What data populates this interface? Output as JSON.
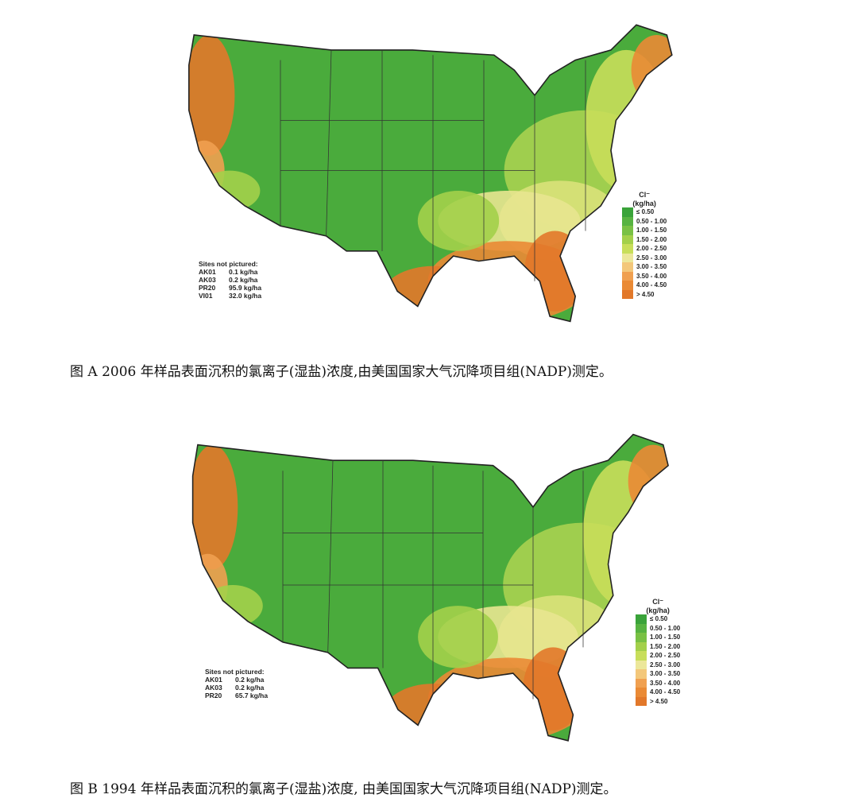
{
  "figures": [
    {
      "legend_title": "Cl⁻",
      "legend_unit": "(kg/ha)",
      "legend": [
        "≤ 0.50",
        "0.50 - 1.00",
        "1.00 - 1.50",
        "1.50 - 2.00",
        "2.00 - 2.50",
        "2.50 - 3.00",
        "3.00 - 3.50",
        "3.50 - 4.00",
        "4.00 - 4.50",
        "> 4.50"
      ],
      "sites_title": "Sites not pictured:",
      "sites": [
        [
          "AK01",
          "0.1 kg/ha"
        ],
        [
          "AK03",
          "0.2 kg/ha"
        ],
        [
          "PR20",
          "95.9 kg/ha"
        ],
        [
          "VI01",
          "32.0 kg/ha"
        ]
      ],
      "caption": "图 A  2006 年样品表面沉积的氯离子(湿盐)浓度,由美国国家大气沉降项目组(NADP)测定。"
    },
    {
      "legend_title": "Cl⁻",
      "legend_unit": "(kg/ha)",
      "legend": [
        "≤ 0.50",
        "0.50 - 1.00",
        "1.00 - 1.50",
        "1.50 - 2.00",
        "2.00 - 2.50",
        "2.50 - 3.00",
        "3.00 - 3.50",
        "3.50 - 4.00",
        "4.00 - 4.50",
        "> 4.50"
      ],
      "sites_title": "Sites not pictured:",
      "sites": [
        [
          "AK01",
          "0.2 kg/ha"
        ],
        [
          "AK03",
          "0.2 kg/ha"
        ],
        [
          "PR20",
          "65.7 kg/ha"
        ]
      ],
      "caption": "图 B  1994 年样品表面沉积的氯离子(湿盐)浓度, 由美国国家大气沉降项目组(NADP)测定。"
    }
  ]
}
